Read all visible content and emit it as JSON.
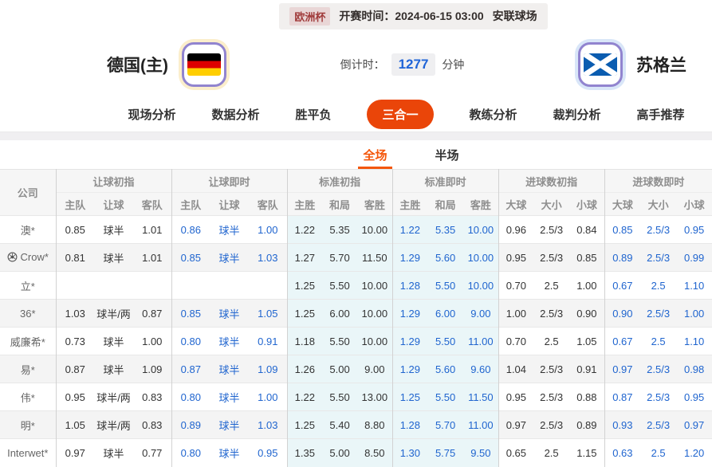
{
  "colors": {
    "accent": "#ea4509",
    "active_tab": "#f4560a",
    "live_blue": "#2065cf",
    "countdown_blue": "#1f64d8",
    "tinted_bg": "#eaf6f8"
  },
  "top_bar": {
    "league": "欧洲杯",
    "kickoff": "开赛时间：2024-06-15 03:00",
    "venue": "安联球场"
  },
  "match": {
    "home_team": "德国(主)",
    "away_team": "苏格兰",
    "home_flag": "germany-flag",
    "away_flag": "scotland-flag",
    "countdown_label": "倒计时：",
    "countdown_value": "1277",
    "countdown_unit": "分钟"
  },
  "nav_tabs": [
    {
      "label": "现场分析",
      "active": false
    },
    {
      "label": "数据分析",
      "active": false
    },
    {
      "label": "胜平负",
      "active": false
    },
    {
      "label": "三合一",
      "active": true
    },
    {
      "label": "教练分析",
      "active": false
    },
    {
      "label": "裁判分析",
      "active": false
    },
    {
      "label": "高手推荐",
      "active": false
    }
  ],
  "sub_tabs": [
    {
      "label": "全场",
      "active": true
    },
    {
      "label": "半场",
      "active": false
    }
  ],
  "odds_table": {
    "company_header": "公司",
    "groups": [
      {
        "label": "让球初指",
        "cols": [
          "主队",
          "让球",
          "客队"
        ],
        "live": false,
        "tinted": false
      },
      {
        "label": "让球即时",
        "cols": [
          "主队",
          "让球",
          "客队"
        ],
        "live": true,
        "tinted": false
      },
      {
        "label": "标准初指",
        "cols": [
          "主胜",
          "和局",
          "客胜"
        ],
        "live": false,
        "tinted": true
      },
      {
        "label": "标准即时",
        "cols": [
          "主胜",
          "和局",
          "客胜"
        ],
        "live": true,
        "tinted": true
      },
      {
        "label": "进球数初指",
        "cols": [
          "大球",
          "大小",
          "小球"
        ],
        "live": false,
        "tinted": false
      },
      {
        "label": "进球数即时",
        "cols": [
          "大球",
          "大小",
          "小球"
        ],
        "live": true,
        "tinted": false
      }
    ],
    "rows": [
      {
        "company": "澳*",
        "icon": false,
        "odds": [
          [
            "0.85",
            "球半",
            "1.01"
          ],
          [
            "0.86",
            "球半",
            "1.00"
          ],
          [
            "1.22",
            "5.35",
            "10.00"
          ],
          [
            "1.22",
            "5.35",
            "10.00"
          ],
          [
            "0.96",
            "2.5/3",
            "0.84"
          ],
          [
            "0.85",
            "2.5/3",
            "0.95"
          ]
        ]
      },
      {
        "company": "Crow*",
        "icon": true,
        "odds": [
          [
            "0.81",
            "球半",
            "1.01"
          ],
          [
            "0.85",
            "球半",
            "1.03"
          ],
          [
            "1.27",
            "5.70",
            "11.50"
          ],
          [
            "1.29",
            "5.60",
            "10.00"
          ],
          [
            "0.95",
            "2.5/3",
            "0.85"
          ],
          [
            "0.89",
            "2.5/3",
            "0.99"
          ]
        ]
      },
      {
        "company": "立*",
        "icon": false,
        "odds": [
          [
            "",
            "",
            ""
          ],
          [
            "",
            "",
            ""
          ],
          [
            "1.25",
            "5.50",
            "10.00"
          ],
          [
            "1.28",
            "5.50",
            "10.00"
          ],
          [
            "0.70",
            "2.5",
            "1.00"
          ],
          [
            "0.67",
            "2.5",
            "1.10"
          ]
        ]
      },
      {
        "company": "36*",
        "icon": false,
        "odds": [
          [
            "1.03",
            "球半/两",
            "0.87"
          ],
          [
            "0.85",
            "球半",
            "1.05"
          ],
          [
            "1.25",
            "6.00",
            "10.00"
          ],
          [
            "1.29",
            "6.00",
            "9.00"
          ],
          [
            "1.00",
            "2.5/3",
            "0.90"
          ],
          [
            "0.90",
            "2.5/3",
            "1.00"
          ]
        ]
      },
      {
        "company": "威廉希*",
        "icon": false,
        "odds": [
          [
            "0.73",
            "球半",
            "1.00"
          ],
          [
            "0.80",
            "球半",
            "0.91"
          ],
          [
            "1.18",
            "5.50",
            "10.00"
          ],
          [
            "1.29",
            "5.50",
            "11.00"
          ],
          [
            "0.70",
            "2.5",
            "1.05"
          ],
          [
            "0.67",
            "2.5",
            "1.10"
          ]
        ]
      },
      {
        "company": "易*",
        "icon": false,
        "odds": [
          [
            "0.87",
            "球半",
            "1.09"
          ],
          [
            "0.87",
            "球半",
            "1.09"
          ],
          [
            "1.26",
            "5.00",
            "9.00"
          ],
          [
            "1.29",
            "5.60",
            "9.60"
          ],
          [
            "1.04",
            "2.5/3",
            "0.91"
          ],
          [
            "0.97",
            "2.5/3",
            "0.98"
          ]
        ]
      },
      {
        "company": "伟*",
        "icon": false,
        "odds": [
          [
            "0.95",
            "球半/两",
            "0.83"
          ],
          [
            "0.80",
            "球半",
            "1.00"
          ],
          [
            "1.22",
            "5.50",
            "13.00"
          ],
          [
            "1.25",
            "5.50",
            "11.50"
          ],
          [
            "0.95",
            "2.5/3",
            "0.88"
          ],
          [
            "0.87",
            "2.5/3",
            "0.95"
          ]
        ]
      },
      {
        "company": "明*",
        "icon": false,
        "odds": [
          [
            "1.05",
            "球半/两",
            "0.83"
          ],
          [
            "0.89",
            "球半",
            "1.03"
          ],
          [
            "1.25",
            "5.40",
            "8.80"
          ],
          [
            "1.28",
            "5.70",
            "11.00"
          ],
          [
            "0.97",
            "2.5/3",
            "0.89"
          ],
          [
            "0.93",
            "2.5/3",
            "0.97"
          ]
        ]
      },
      {
        "company": "Interwet*",
        "icon": false,
        "odds": [
          [
            "0.97",
            "球半",
            "0.77"
          ],
          [
            "0.80",
            "球半",
            "0.95"
          ],
          [
            "1.35",
            "5.00",
            "8.50"
          ],
          [
            "1.30",
            "5.75",
            "9.50"
          ],
          [
            "0.65",
            "2.5",
            "1.15"
          ],
          [
            "0.63",
            "2.5",
            "1.20"
          ]
        ]
      }
    ]
  }
}
